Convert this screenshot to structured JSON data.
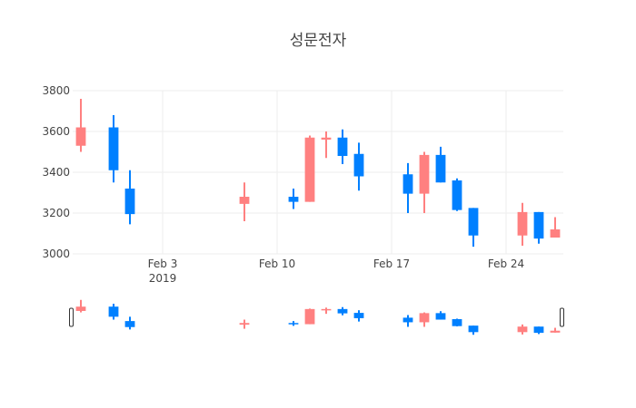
{
  "chart_data": {
    "type": "candlestick",
    "title": "성문전자",
    "xlabel": "",
    "ylabel": "",
    "ylim": [
      3000,
      3800
    ],
    "yticks": [
      3000,
      3200,
      3400,
      3600,
      3800
    ],
    "xlim": [
      "2019-01-29",
      "2019-02-27"
    ],
    "xticks": [
      {
        "date": "2019-02-03",
        "label": "Feb 3",
        "sublabel": "2019"
      },
      {
        "date": "2019-02-10",
        "label": "Feb 10",
        "sublabel": ""
      },
      {
        "date": "2019-02-17",
        "label": "Feb 17",
        "sublabel": ""
      },
      {
        "date": "2019-02-24",
        "label": "Feb 24",
        "sublabel": ""
      }
    ],
    "grid": true,
    "legend": "none",
    "range_slider": true,
    "colors": {
      "increasing": "#ff8080",
      "decreasing": "#0080ff"
    },
    "candles": [
      {
        "date": "2019-01-29",
        "open": 3530,
        "high": 3760,
        "low": 3500,
        "close": 3620
      },
      {
        "date": "2019-01-31",
        "open": 3620,
        "high": 3680,
        "low": 3350,
        "close": 3410
      },
      {
        "date": "2019-02-01",
        "open": 3320,
        "high": 3410,
        "low": 3145,
        "close": 3195
      },
      {
        "date": "2019-02-08",
        "open": 3245,
        "high": 3350,
        "low": 3160,
        "close": 3280
      },
      {
        "date": "2019-02-11",
        "open": 3280,
        "high": 3320,
        "low": 3220,
        "close": 3255
      },
      {
        "date": "2019-02-12",
        "open": 3255,
        "high": 3580,
        "low": 3255,
        "close": 3570
      },
      {
        "date": "2019-02-13",
        "open": 3560,
        "high": 3600,
        "low": 3470,
        "close": 3570
      },
      {
        "date": "2019-02-14",
        "open": 3570,
        "high": 3610,
        "low": 3440,
        "close": 3480
      },
      {
        "date": "2019-02-15",
        "open": 3490,
        "high": 3545,
        "low": 3310,
        "close": 3380
      },
      {
        "date": "2019-02-18",
        "open": 3390,
        "high": 3445,
        "low": 3200,
        "close": 3295
      },
      {
        "date": "2019-02-19",
        "open": 3295,
        "high": 3500,
        "low": 3200,
        "close": 3485
      },
      {
        "date": "2019-02-20",
        "open": 3485,
        "high": 3525,
        "low": 3350,
        "close": 3350
      },
      {
        "date": "2019-02-21",
        "open": 3360,
        "high": 3370,
        "low": 3210,
        "close": 3215
      },
      {
        "date": "2019-02-22",
        "open": 3225,
        "high": 3225,
        "low": 3035,
        "close": 3090
      },
      {
        "date": "2019-02-25",
        "open": 3090,
        "high": 3250,
        "low": 3040,
        "close": 3205
      },
      {
        "date": "2019-02-26",
        "open": 3205,
        "high": 3205,
        "low": 3050,
        "close": 3075
      },
      {
        "date": "2019-02-27",
        "open": 3080,
        "high": 3180,
        "low": 3080,
        "close": 3120
      }
    ]
  }
}
